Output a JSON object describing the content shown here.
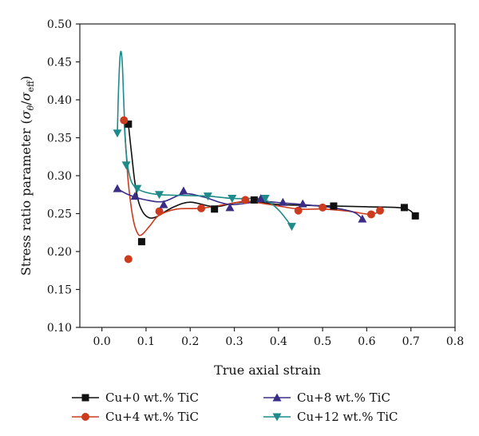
{
  "chart_data": {
    "type": "scatter",
    "xlabel": "True axial strain",
    "ylabel_main": "Stress ratio parameter (",
    "ylabel_sym1": "σ",
    "ylabel_sub1": "θ",
    "ylabel_slash": "/",
    "ylabel_sym2": "σ",
    "ylabel_sub2": "eff",
    "ylabel_close": ")",
    "xlim": [
      -0.05,
      0.8
    ],
    "ylim": [
      0.1,
      0.5
    ],
    "x_ticks": [
      "0.0",
      "0.1",
      "0.2",
      "0.3",
      "0.4",
      "0.5",
      "0.6",
      "0.7",
      "0.8"
    ],
    "y_ticks": [
      "0.10",
      "0.15",
      "0.20",
      "0.25",
      "0.30",
      "0.35",
      "0.40",
      "0.45",
      "0.50"
    ],
    "legend_position": "bottom",
    "series": [
      {
        "name": "Cu+0 wt.% TiC",
        "color": "#111111",
        "marker": "square",
        "points": [
          [
            0.06,
            0.368
          ],
          [
            0.09,
            0.213
          ],
          [
            0.255,
            0.256
          ],
          [
            0.345,
            0.268
          ],
          [
            0.525,
            0.26
          ],
          [
            0.685,
            0.258
          ],
          [
            0.71,
            0.247
          ]
        ],
        "curve": [
          [
            0.06,
            0.368
          ],
          [
            0.067,
            0.33
          ],
          [
            0.075,
            0.29
          ],
          [
            0.085,
            0.262
          ],
          [
            0.1,
            0.247
          ],
          [
            0.12,
            0.245
          ],
          [
            0.16,
            0.258
          ],
          [
            0.2,
            0.265
          ],
          [
            0.255,
            0.259
          ],
          [
            0.3,
            0.264
          ],
          [
            0.345,
            0.266
          ],
          [
            0.4,
            0.262
          ],
          [
            0.45,
            0.261
          ],
          [
            0.525,
            0.26
          ],
          [
            0.6,
            0.259
          ],
          [
            0.685,
            0.257
          ],
          [
            0.71,
            0.247
          ]
        ]
      },
      {
        "name": "Cu+4 wt.% TiC",
        "color": "#cc3b1e",
        "marker": "circle",
        "points": [
          [
            0.05,
            0.373
          ],
          [
            0.06,
            0.19
          ],
          [
            0.13,
            0.253
          ],
          [
            0.225,
            0.257
          ],
          [
            0.325,
            0.268
          ],
          [
            0.445,
            0.254
          ],
          [
            0.5,
            0.258
          ],
          [
            0.61,
            0.249
          ],
          [
            0.63,
            0.254
          ]
        ],
        "curve": [
          [
            0.05,
            0.373
          ],
          [
            0.055,
            0.33
          ],
          [
            0.06,
            0.29
          ],
          [
            0.07,
            0.245
          ],
          [
            0.08,
            0.225
          ],
          [
            0.09,
            0.222
          ],
          [
            0.11,
            0.235
          ],
          [
            0.13,
            0.248
          ],
          [
            0.17,
            0.256
          ],
          [
            0.225,
            0.257
          ],
          [
            0.28,
            0.262
          ],
          [
            0.325,
            0.266
          ],
          [
            0.38,
            0.262
          ],
          [
            0.445,
            0.256
          ],
          [
            0.5,
            0.256
          ],
          [
            0.56,
            0.253
          ],
          [
            0.61,
            0.249
          ],
          [
            0.63,
            0.254
          ]
        ]
      },
      {
        "name": "Cu+8 wt.% TiC",
        "color": "#3a2d86",
        "marker": "triangle-up",
        "points": [
          [
            0.035,
            0.283
          ],
          [
            0.075,
            0.273
          ],
          [
            0.14,
            0.262
          ],
          [
            0.185,
            0.28
          ],
          [
            0.29,
            0.258
          ],
          [
            0.36,
            0.27
          ],
          [
            0.41,
            0.265
          ],
          [
            0.455,
            0.263
          ],
          [
            0.59,
            0.243
          ]
        ],
        "curve": [
          [
            0.035,
            0.283
          ],
          [
            0.06,
            0.275
          ],
          [
            0.1,
            0.268
          ],
          [
            0.14,
            0.266
          ],
          [
            0.185,
            0.276
          ],
          [
            0.23,
            0.272
          ],
          [
            0.29,
            0.262
          ],
          [
            0.36,
            0.266
          ],
          [
            0.41,
            0.264
          ],
          [
            0.455,
            0.262
          ],
          [
            0.52,
            0.258
          ],
          [
            0.57,
            0.252
          ],
          [
            0.59,
            0.243
          ]
        ]
      },
      {
        "name": "Cu+12 wt.% TiC",
        "color": "#1e8a8a",
        "marker": "triangle-down",
        "points": [
          [
            0.035,
            0.356
          ],
          [
            0.055,
            0.314
          ],
          [
            0.08,
            0.283
          ],
          [
            0.13,
            0.275
          ],
          [
            0.24,
            0.273
          ],
          [
            0.295,
            0.27
          ],
          [
            0.37,
            0.27
          ],
          [
            0.43,
            0.233
          ]
        ],
        "curve": [
          [
            0.035,
            0.356
          ],
          [
            0.038,
            0.42
          ],
          [
            0.042,
            0.462
          ],
          [
            0.046,
            0.45
          ],
          [
            0.05,
            0.39
          ],
          [
            0.055,
            0.33
          ],
          [
            0.065,
            0.295
          ],
          [
            0.08,
            0.283
          ],
          [
            0.1,
            0.278
          ],
          [
            0.13,
            0.275
          ],
          [
            0.18,
            0.274
          ],
          [
            0.24,
            0.273
          ],
          [
            0.295,
            0.27
          ],
          [
            0.34,
            0.27
          ],
          [
            0.37,
            0.268
          ],
          [
            0.4,
            0.255
          ],
          [
            0.43,
            0.233
          ]
        ]
      }
    ]
  }
}
